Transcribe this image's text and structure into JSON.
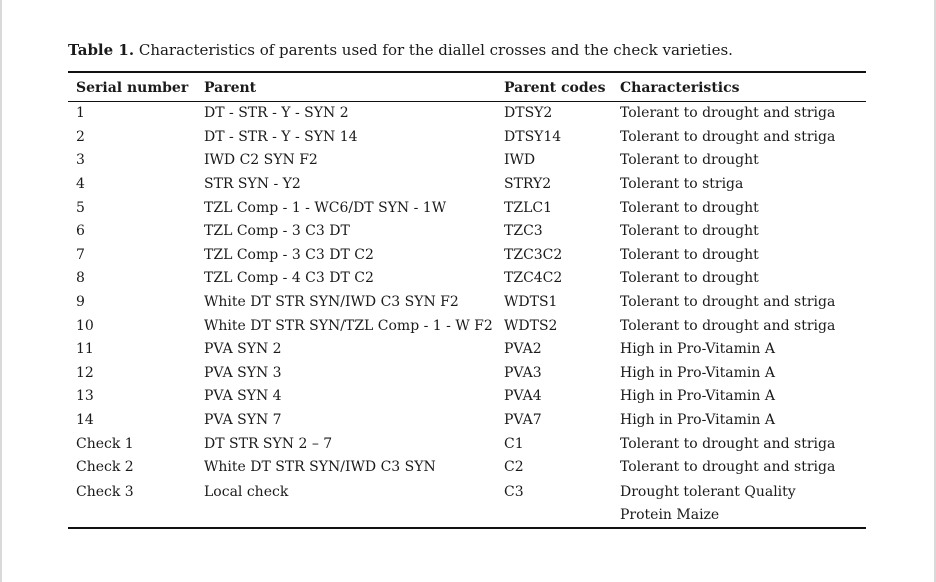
{
  "caption": {
    "label": "Table 1.",
    "text": "Characteristics of parents used for the diallel crosses and the check varieties."
  },
  "table": {
    "headers": [
      "Serial number",
      "Parent",
      "Parent codes",
      "Characteristics"
    ],
    "rows": [
      [
        "1",
        "DT - STR - Y - SYN 2",
        "DTSY2",
        "Tolerant to drought and striga"
      ],
      [
        "2",
        "DT - STR - Y - SYN 14",
        "DTSY14",
        "Tolerant to drought and striga"
      ],
      [
        "3",
        "IWD C2 SYN F2",
        "IWD",
        "Tolerant to drought"
      ],
      [
        "4",
        "STR SYN - Y2",
        "STRY2",
        "Tolerant to striga"
      ],
      [
        "5",
        "TZL Comp - 1 - WC6/DT SYN - 1W",
        "TZLC1",
        "Tolerant to drought"
      ],
      [
        "6",
        "TZL Comp - 3 C3 DT",
        "TZC3",
        "Tolerant to drought"
      ],
      [
        "7",
        "TZL Comp - 3 C3 DT C2",
        "TZC3C2",
        "Tolerant to drought"
      ],
      [
        "8",
        "TZL Comp - 4 C3 DT C2",
        "TZC4C2",
        "Tolerant to drought"
      ],
      [
        "9",
        "White DT STR SYN/IWD C3 SYN F2",
        "WDTS1",
        "Tolerant to drought and striga"
      ],
      [
        "10",
        "White DT STR SYN/TZL Comp - 1 - W F2",
        "WDTS2",
        "Tolerant to drought and striga"
      ],
      [
        "11",
        "PVA SYN 2",
        "PVA2",
        "High in Pro-Vitamin A"
      ],
      [
        "12",
        "PVA SYN 3",
        "PVA3",
        "High in Pro-Vitamin A"
      ],
      [
        "13",
        "PVA SYN 4",
        "PVA4",
        "High in Pro-Vitamin A"
      ],
      [
        "14",
        "PVA SYN 7",
        "PVA7",
        "High in Pro-Vitamin A"
      ],
      [
        "Check 1",
        "DT STR SYN 2 – 7",
        "C1",
        "Tolerant to drought and striga"
      ],
      [
        "Check 2",
        "White DT STR SYN/IWD C3 SYN",
        "C2",
        "Tolerant to drought and striga"
      ],
      [
        "Check 3",
        "Local check",
        "C3",
        "Drought tolerant Quality Protein Maize"
      ]
    ]
  }
}
